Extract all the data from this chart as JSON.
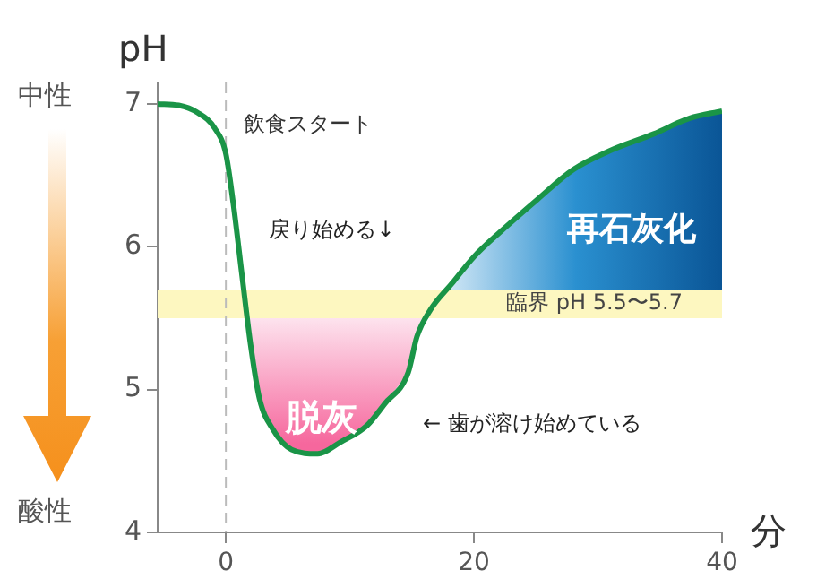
{
  "chart_data": {
    "type": "line",
    "ylabel": "pH",
    "xlabel": "分",
    "xlim": [
      -5.5,
      40
    ],
    "xticks": [
      0,
      20,
      40
    ],
    "ylim": [
      4,
      7.15
    ],
    "yticks": [
      4,
      5,
      6,
      7
    ],
    "grid": false,
    "legend": false,
    "marker": "none",
    "line_style": "solid",
    "series": [
      {
        "color": "#1a9447",
        "x": [
          -5.5,
          -3.8,
          -2.3,
          -0.9,
          0,
          0.6,
          1.3,
          2,
          2.7,
          3.8,
          5.3,
          7.4,
          9.2,
          11.4,
          12.8,
          14.7,
          15.4,
          16.5,
          18.2,
          20,
          22.2,
          25.1,
          28,
          30.9,
          34.5,
          37.4,
          40
        ],
        "values": [
          7.0,
          6.99,
          6.94,
          6.83,
          6.65,
          6.3,
          5.8,
          5.31,
          4.94,
          4.72,
          4.58,
          4.55,
          4.63,
          4.75,
          4.9,
          5.12,
          5.37,
          5.56,
          5.74,
          5.93,
          6.11,
          6.33,
          6.54,
          6.67,
          6.79,
          6.9,
          6.95
        ]
      }
    ],
    "ref_lines": [
      {
        "axis": "x",
        "value": 0,
        "label": "飲食スタート",
        "color": "#bbbbbb",
        "line_style": "dashed"
      }
    ],
    "bands": [
      {
        "axis": "y",
        "from": 5.5,
        "to": 5.7,
        "label": "臨界 pH 5.5〜5.7",
        "color": "#fdf7c0"
      }
    ],
    "annotations": [
      "脱灰",
      "再石灰化",
      "戻り始める↓",
      "← 歯が溶け始めている",
      "中性",
      "酸性"
    ]
  }
}
